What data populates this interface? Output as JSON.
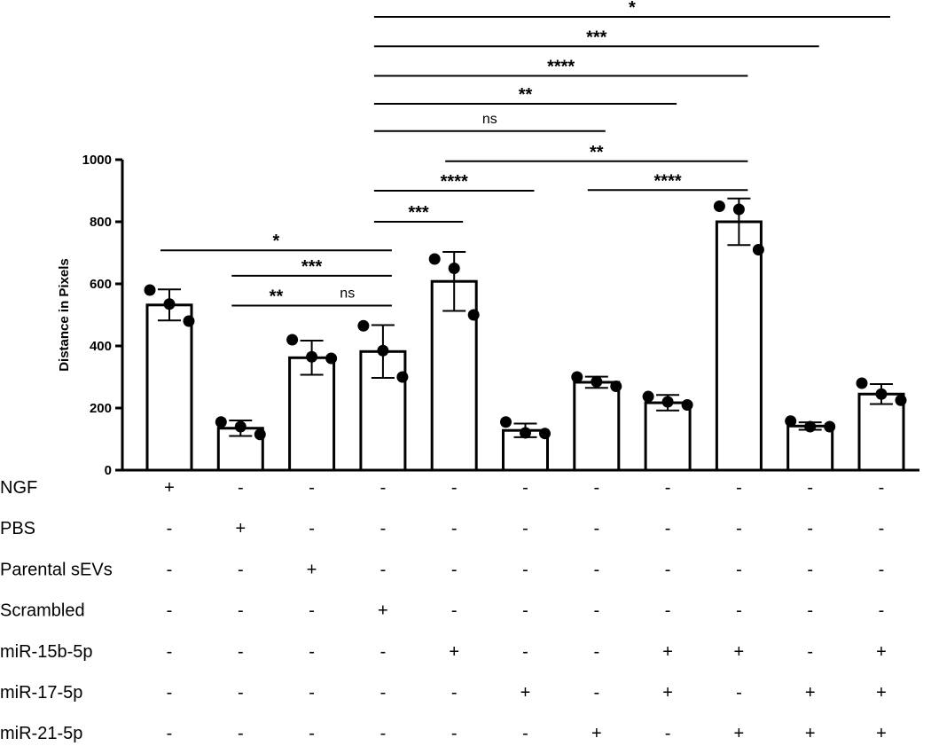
{
  "chart_data": {
    "type": "bar",
    "title": "",
    "ylabel": "Distance in Pixels",
    "xlabel": "",
    "ylim": [
      0,
      1000
    ],
    "yticks": [
      0,
      200,
      400,
      600,
      800,
      1000
    ],
    "grid": false,
    "legend": "none",
    "groups": [
      {
        "mean": 532,
        "error": 50,
        "points": [
          580,
          535,
          480
        ]
      },
      {
        "mean": 135,
        "error": 25,
        "points": [
          155,
          140,
          115
        ]
      },
      {
        "mean": 362,
        "error": 55,
        "points": [
          420,
          365,
          360
        ]
      },
      {
        "mean": 382,
        "error": 85,
        "points": [
          465,
          385,
          300
        ]
      },
      {
        "mean": 608,
        "error": 95,
        "points": [
          680,
          650,
          500
        ]
      },
      {
        "mean": 128,
        "error": 22,
        "points": [
          155,
          120,
          118
        ]
      },
      {
        "mean": 283,
        "error": 18,
        "points": [
          300,
          285,
          270
        ]
      },
      {
        "mean": 217,
        "error": 25,
        "points": [
          237,
          220,
          210
        ]
      },
      {
        "mean": 800,
        "error": 75,
        "points": [
          850,
          840,
          710
        ]
      },
      {
        "mean": 142,
        "error": 12,
        "points": [
          158,
          140,
          140
        ]
      },
      {
        "mean": 245,
        "error": 32,
        "points": [
          280,
          245,
          225
        ]
      }
    ],
    "comparisons": [
      {
        "from": 0,
        "to": 3,
        "label": "*",
        "y": 708
      },
      {
        "from": 1,
        "to": 3,
        "label": "***",
        "y": 626
      },
      {
        "from": 1,
        "to": 2,
        "label": "**",
        "y": 530
      },
      {
        "from": 2,
        "to": 3,
        "label": "ns",
        "y": 530
      },
      {
        "from": 3,
        "to": 4,
        "label": "***",
        "y": 800
      },
      {
        "from": 3,
        "to": 5,
        "label": "****",
        "y": 900
      },
      {
        "from": 6,
        "to": 8,
        "label": "****",
        "y": 902
      },
      {
        "from": 4,
        "to": 8,
        "label": "**",
        "y": 995
      },
      {
        "from": 3,
        "to": 6,
        "label": "ns",
        "y": 1092
      },
      {
        "from": 3,
        "to": 7,
        "label": "**",
        "y": 1180
      },
      {
        "from": 3,
        "to": 8,
        "label": "****",
        "y": 1270
      },
      {
        "from": 3,
        "to": 9,
        "label": "***",
        "y": 1365
      },
      {
        "from": 3,
        "to": 10,
        "label": "*",
        "y": 1460
      }
    ],
    "treatment_table": {
      "rows": [
        {
          "label": "NGF",
          "marks": [
            "+",
            "-",
            "-",
            "-",
            "-",
            "-",
            "-",
            "-",
            "-",
            "-",
            "-"
          ]
        },
        {
          "label": "PBS",
          "marks": [
            "-",
            "+",
            "-",
            "-",
            "-",
            "-",
            "-",
            "-",
            "-",
            "-",
            "-"
          ]
        },
        {
          "label": "Parental sEVs",
          "marks": [
            "-",
            "-",
            "+",
            "-",
            "-",
            "-",
            "-",
            "-",
            "-",
            "-",
            "-"
          ]
        },
        {
          "label": "Scrambled",
          "marks": [
            "-",
            "-",
            "-",
            "+",
            "-",
            "-",
            "-",
            "-",
            "-",
            "-",
            "-"
          ]
        },
        {
          "label": "miR-15b-5p",
          "marks": [
            "-",
            "-",
            "-",
            "-",
            "+",
            "-",
            "-",
            "+",
            "+",
            "-",
            "+"
          ]
        },
        {
          "label": "miR-17-5p",
          "marks": [
            "-",
            "-",
            "-",
            "-",
            "-",
            "+",
            "-",
            "+",
            "-",
            "+",
            "+"
          ]
        },
        {
          "label": "miR-21-5p",
          "marks": [
            "-",
            "-",
            "-",
            "-",
            "-",
            "-",
            "+",
            "-",
            "+",
            "+",
            "+"
          ]
        }
      ]
    }
  }
}
